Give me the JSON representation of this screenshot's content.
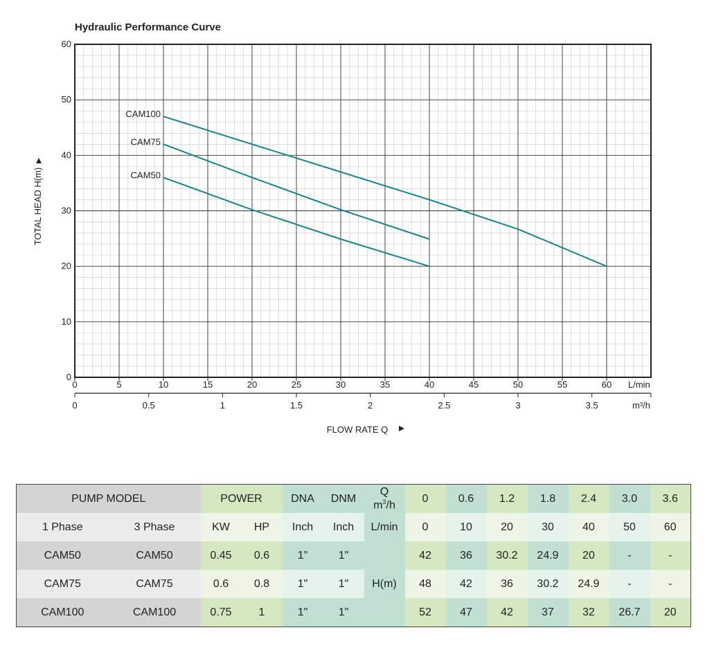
{
  "chart_data": {
    "type": "line",
    "title": "Hydraulic Performance Curve",
    "ylabel": "TOTAL HEAD H(m)",
    "xlabel": "FLOW RATE Q",
    "x_unit_primary": "L/min",
    "x_unit_secondary": "m³/h",
    "xlim": [
      0,
      65
    ],
    "ylim": [
      0,
      60
    ],
    "x_ticks": [
      0,
      5,
      10,
      15,
      20,
      25,
      30,
      35,
      40,
      45,
      50,
      55,
      60
    ],
    "x_ticks_labels": [
      "0",
      "5",
      "10",
      "15",
      "20",
      "25",
      "30",
      "35",
      "40",
      "45",
      "50",
      "55",
      "60"
    ],
    "x2_ticks": [
      0,
      0.5,
      1,
      1.5,
      2,
      2.5,
      3,
      3.5
    ],
    "x2_ticks_labels": [
      "0",
      "0.5",
      "1",
      "1.5",
      "2",
      "2.5",
      "3",
      "3.5"
    ],
    "y_ticks": [
      0,
      10,
      20,
      30,
      40,
      50,
      60
    ],
    "y_ticks_labels": [
      "0",
      "10",
      "20",
      "30",
      "40",
      "50",
      "60"
    ],
    "grid": true,
    "line_color": "#14868a",
    "series": [
      {
        "name": "CAM100",
        "x": [
          10,
          20,
          30,
          40,
          50,
          60
        ],
        "y": [
          47,
          42,
          37,
          32,
          26.7,
          20
        ]
      },
      {
        "name": "CAM75",
        "x": [
          10,
          20,
          30,
          40
        ],
        "y": [
          42,
          36,
          30.2,
          24.9
        ]
      },
      {
        "name": "CAM50",
        "x": [
          10,
          20,
          30,
          40
        ],
        "y": [
          36,
          30.2,
          24.9,
          20
        ]
      }
    ]
  },
  "table": {
    "pump_model": "PUMP MODEL",
    "power": "POWER",
    "dna": "DNA",
    "dnm": "DNM",
    "q_top": "Q",
    "q_bottom_base": "m",
    "q_bottom_sup": "3",
    "q_bottom_tail": "/h",
    "phase1": "1 Phase",
    "phase3": "3 Phase",
    "kw": "KW",
    "hp": "HP",
    "inch1": "Inch",
    "inch2": "Inch",
    "lmin": "L/min",
    "hm": "H(m)",
    "q_m3h": [
      "0",
      "0.6",
      "1.2",
      "1.8",
      "2.4",
      "3.0",
      "3.6"
    ],
    "q_lmin": [
      "0",
      "10",
      "20",
      "30",
      "40",
      "50",
      "60"
    ],
    "rows": [
      {
        "p1": "CAM50",
        "p3": "CAM50",
        "kw": "0.45",
        "hp": "0.6",
        "dna": "1\"",
        "dnm": "1\"",
        "h": [
          "42",
          "36",
          "30.2",
          "24.9",
          "20",
          "-",
          "-"
        ]
      },
      {
        "p1": "CAM75",
        "p3": "CAM75",
        "kw": "0.6",
        "hp": "0.8",
        "dna": "1\"",
        "dnm": "1\"",
        "h": [
          "48",
          "42",
          "36",
          "30.2",
          "24.9",
          "-",
          "-"
        ]
      },
      {
        "p1": "CAM100",
        "p3": "CAM100",
        "kw": "0.75",
        "hp": "1",
        "dna": "1\"",
        "dnm": "1\"",
        "h": [
          "52",
          "47",
          "42",
          "37",
          "32",
          "26.7",
          "20"
        ]
      }
    ]
  }
}
